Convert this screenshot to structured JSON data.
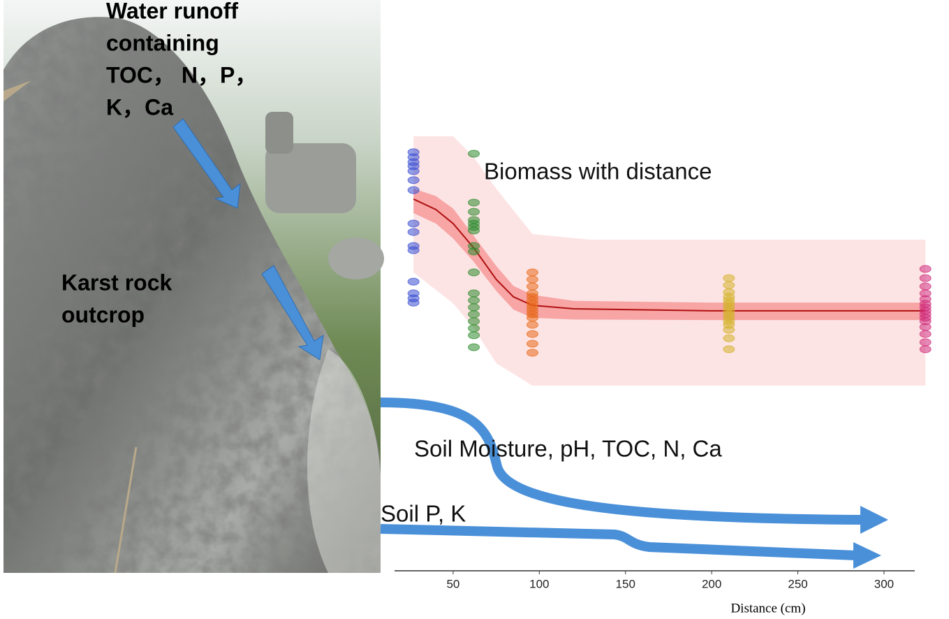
{
  "chart_data": {
    "type": "scatter",
    "title": "Biomass with distance",
    "x_label": "Distance (cm)",
    "xlim": [
      16,
      330
    ],
    "xticks": [
      50,
      100,
      150,
      200,
      250,
      300
    ],
    "ylim": [
      0,
      100
    ],
    "series": [
      {
        "color": "#3a4fd1",
        "x": [
          27,
          27,
          27,
          27,
          27,
          27,
          27,
          27,
          27,
          27,
          27,
          27,
          27,
          27,
          27
        ],
        "values": [
          93.6,
          91.6,
          89.6,
          88,
          86,
          82.4,
          78.4,
          65,
          61.6,
          56,
          54.3,
          41.7,
          37,
          35,
          33.3
        ]
      },
      {
        "color": "#2e8b2e",
        "x": [
          62,
          62,
          62,
          62,
          62,
          62,
          62,
          62,
          62,
          62,
          62,
          62,
          62,
          62,
          62,
          62,
          62,
          62
        ],
        "values": [
          93,
          73.4,
          69.7,
          66.4,
          65,
          63.6,
          62.2,
          56,
          53.8,
          45.4,
          37,
          34.2,
          31.4,
          28.6,
          25.8,
          23,
          20.2,
          15.4
        ]
      },
      {
        "color": "#e86a1a",
        "x": [
          96,
          96,
          96,
          96,
          96,
          96,
          96,
          96,
          96,
          96,
          96,
          96,
          96,
          96,
          96
        ],
        "values": [
          45.4,
          42.6,
          39.8,
          37,
          35.6,
          34.2,
          32.8,
          31.4,
          30,
          28.6,
          27.2,
          24.4,
          20.7,
          16.8,
          13.2
        ]
      },
      {
        "color": "#d4b22a",
        "x": [
          210,
          210,
          210,
          210,
          210,
          210,
          210,
          210,
          210,
          210,
          210,
          210,
          210,
          210,
          210
        ],
        "values": [
          43.1,
          40.3,
          37.5,
          35.6,
          34.2,
          32.8,
          31.4,
          30,
          28.6,
          27.2,
          25.8,
          24.4,
          22.4,
          19,
          14.6
        ]
      },
      {
        "color": "#d02a7a",
        "x": [
          324,
          324,
          324,
          324,
          324,
          324,
          324,
          324,
          324,
          324,
          324,
          324,
          324,
          324,
          324
        ],
        "values": [
          46.8,
          43.1,
          39.8,
          37,
          34.7,
          32.8,
          31.4,
          30,
          28.6,
          27.2,
          25.8,
          23.5,
          20.7,
          17.4,
          14.6
        ]
      }
    ],
    "fit": {
      "color": "#b01010",
      "x": [
        27,
        40,
        50,
        62,
        75,
        85,
        96,
        120,
        200,
        324
      ],
      "values": [
        74.8,
        70.6,
        65,
        55.2,
        42.6,
        35.6,
        32.2,
        30.8,
        30,
        30
      ]
    },
    "confidence_band": {
      "color": "#f47c7c",
      "x": [
        27,
        40,
        50,
        62,
        75,
        85,
        96,
        120,
        200,
        324
      ],
      "upper": [
        79,
        76,
        71,
        60,
        48,
        40,
        36.4,
        34,
        33.3,
        33.3
      ],
      "lower": [
        69.2,
        65,
        59,
        49.6,
        38,
        30.5,
        27.2,
        26.5,
        26.3,
        26.3
      ]
    },
    "prediction_band": {
      "color": "#fde4e4",
      "x": [
        27,
        50,
        62,
        75,
        96,
        130,
        324
      ],
      "upper": [
        100,
        100,
        91.6,
        79,
        60.8,
        58.5,
        58.5
      ],
      "lower": [
        45.4,
        33,
        23,
        9,
        0,
        0,
        0
      ]
    },
    "annotations": [
      {
        "lines": [
          "Water runoff",
          "containing",
          "TOC，  N，P，",
          "K，Ca"
        ]
      },
      {
        "lines": [
          "Karst rock",
          "outcrop"
        ]
      },
      {
        "lines": [
          "Soil Moisture, pH, TOC, N, Ca"
        ]
      },
      {
        "lines": [
          "Soil P, K"
        ]
      }
    ]
  }
}
